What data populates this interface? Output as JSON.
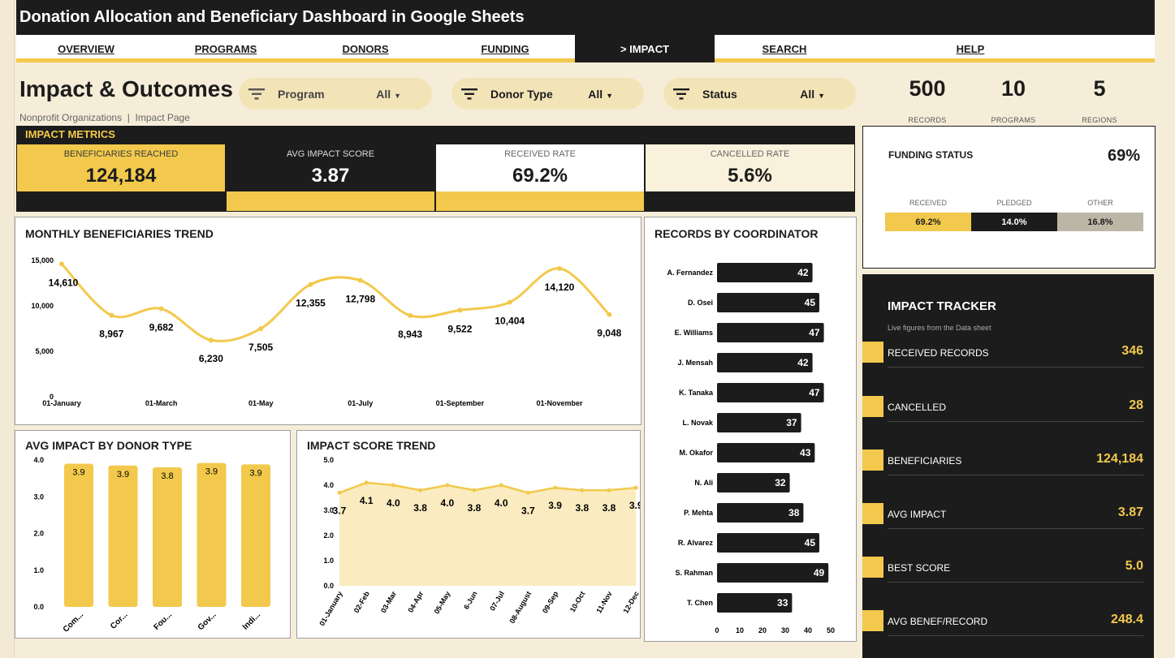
{
  "app": {
    "title": "Donation Allocation and Beneficiary Dashboard in Google Sheets"
  },
  "nav": [
    {
      "label": "OVERVIEW",
      "active": false
    },
    {
      "label": "PROGRAMS",
      "active": false
    },
    {
      "label": "DONORS",
      "active": false
    },
    {
      "label": "FUNDING",
      "active": false
    },
    {
      "label": "> IMPACT",
      "active": true
    },
    {
      "label": "SEARCH",
      "active": false
    },
    {
      "label": "HELP",
      "active": false
    }
  ],
  "page": {
    "title": "Impact & Outcomes",
    "subtitle": "Nonprofit Organizations  |  Impact Page"
  },
  "filters": [
    {
      "label": "Program",
      "value": "All"
    },
    {
      "label": "Donor Type",
      "value": "All"
    },
    {
      "label": "Status",
      "value": "All"
    }
  ],
  "kpis": [
    {
      "value": "500",
      "label": "RECORDS"
    },
    {
      "value": "10",
      "label": "PROGRAMS"
    },
    {
      "value": "5",
      "label": "REGIONS"
    }
  ],
  "metrics": {
    "title": "IMPACT METRICS",
    "cards": [
      {
        "label": "BENEFICIARIES REACHED",
        "value": "124,184"
      },
      {
        "label": "AVG IMPACT SCORE",
        "value": "3.87"
      },
      {
        "label": "RECEIVED RATE",
        "value": "69.2%"
      },
      {
        "label": "CANCELLED RATE",
        "value": "5.6%"
      }
    ]
  },
  "funding": {
    "title": "FUNDING STATUS",
    "pct": "69%",
    "segments": [
      {
        "label": "RECEIVED",
        "value": "69.2%",
        "fraction": 0.692,
        "color": "#f2c94c"
      },
      {
        "label": "PLEDGED",
        "value": "14.0%",
        "fraction": 0.14,
        "color": "#1c1c1c"
      },
      {
        "label": "OTHER",
        "value": "16.8%",
        "fraction": 0.168,
        "color": "#bcb6a7"
      }
    ]
  },
  "tracker": {
    "title": "IMPACT TRACKER",
    "subtitle": "Live figures from the Data sheet",
    "rows": [
      {
        "label": "RECEIVED RECORDS",
        "value": "346"
      },
      {
        "label": "CANCELLED",
        "value": "28"
      },
      {
        "label": "BENEFICIARIES",
        "value": "124,184"
      },
      {
        "label": "AVG IMPACT",
        "value": "3.87"
      },
      {
        "label": "BEST SCORE",
        "value": "5.0"
      },
      {
        "label": "AVG BENEF/RECORD",
        "value": "248.4"
      }
    ]
  },
  "charts": {
    "monthly_title": "MONTHLY BENEFICIARIES TREND",
    "coordinator_title": "RECORDS BY COORDINATOR",
    "donor_title": "AVG IMPACT BY DONOR TYPE",
    "score_title": "IMPACT SCORE TREND"
  },
  "chart_data": [
    {
      "type": "line",
      "title": "MONTHLY BENEFICIARIES TREND",
      "x": [
        "01-January",
        "02-February",
        "03-March",
        "04-April",
        "05-May",
        "06-June",
        "07-July",
        "08-August",
        "09-September",
        "10-October",
        "11-November",
        "12-December"
      ],
      "x_tick_labels": [
        "01-January",
        "01-March",
        "01-May",
        "01-July",
        "01-September",
        "01-November"
      ],
      "values": [
        14610,
        8967,
        9682,
        6230,
        7505,
        12355,
        12798,
        8943,
        9522,
        10404,
        14120,
        9048
      ],
      "data_labels": [
        "14,610",
        "8,967",
        "9,682",
        "6,230",
        "7,505",
        "12,355",
        "12,798",
        "8,943",
        "9,522",
        "10,404",
        "14,120",
        "9,048"
      ],
      "y_ticks": [
        "0",
        "5,000",
        "10,000",
        "15,000"
      ],
      "ylim": [
        0,
        15000
      ],
      "color": "#f2c94c",
      "grid": false
    },
    {
      "type": "bar",
      "title": "RECORDS BY COORDINATOR",
      "orientation": "horizontal",
      "categories": [
        "A. Fernandez",
        "D. Osei",
        "E. Williams",
        "J. Mensah",
        "K. Tanaka",
        "L. Novak",
        "M. Okafor",
        "N. Ali",
        "P. Mehta",
        "R. Alvarez",
        "S. Rahman",
        "T. Chen"
      ],
      "values": [
        42,
        45,
        47,
        42,
        47,
        37,
        43,
        32,
        38,
        45,
        49,
        33
      ],
      "x_ticks": [
        "0",
        "10",
        "20",
        "30",
        "40",
        "50"
      ],
      "xlim": [
        0,
        50
      ],
      "color": "#1c1c1c"
    },
    {
      "type": "bar",
      "title": "AVG IMPACT BY DONOR TYPE",
      "categories": [
        "Com...",
        "Cor...",
        "Fou...",
        "Gov...",
        "Indi..."
      ],
      "values": [
        3.9,
        3.85,
        3.8,
        3.92,
        3.88
      ],
      "data_labels": [
        "3.9",
        "3.9",
        "3.8",
        "3.9",
        "3.9"
      ],
      "y_ticks": [
        "0.0",
        "1.0",
        "2.0",
        "3.0",
        "4.0"
      ],
      "ylim": [
        0,
        4
      ],
      "color": "#f2c94c"
    },
    {
      "type": "area",
      "title": "IMPACT SCORE TREND",
      "categories": [
        "01-January",
        "02-Feb",
        "03-Mar",
        "04-Apr",
        "05-May",
        "6-Jun",
        "07-Jul",
        "08-August",
        "09-Sep",
        "10-Oct",
        "11-Nov",
        "12-Dec"
      ],
      "values": [
        3.7,
        4.1,
        4.0,
        3.8,
        4.0,
        3.8,
        4.0,
        3.7,
        3.9,
        3.8,
        3.8,
        3.9
      ],
      "data_labels": [
        "3.7",
        "4.1",
        "4.0",
        "3.8",
        "4.0",
        "3.8",
        "4.0",
        "3.7",
        "3.9",
        "3.8",
        "3.8",
        "3.9"
      ],
      "y_ticks": [
        "0.0",
        "1.0",
        "2.0",
        "3.0",
        "4.0",
        "5.0"
      ],
      "ylim": [
        0,
        5
      ],
      "color": "#f2c94c"
    }
  ]
}
